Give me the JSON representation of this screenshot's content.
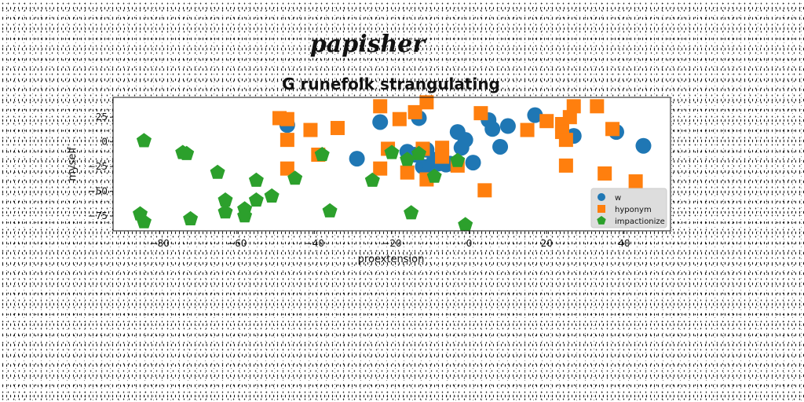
{
  "suptitle": "papisher",
  "chart_data": {
    "type": "scatter",
    "title": "G runefolk strangulating",
    "xlabel": "proextension",
    "ylabel": "myself",
    "xlim": [
      -92,
      52
    ],
    "ylim": [
      -90,
      45
    ],
    "xticks": [
      -80,
      -60,
      -40,
      -20,
      0,
      20,
      40
    ],
    "yticks": [
      25,
      0,
      -25,
      -50,
      -75
    ],
    "grid": false,
    "legend_position": "lower-right",
    "series": [
      {
        "name": "w",
        "marker": "circle",
        "color": "#1f77b4",
        "points": [
          [
            -47,
            17
          ],
          [
            -29,
            -17
          ],
          [
            -23,
            20
          ],
          [
            -13,
            24
          ],
          [
            -12,
            -25
          ],
          [
            -10,
            -24
          ],
          [
            -8,
            -22
          ],
          [
            -6,
            -23
          ],
          [
            -14,
            -13
          ],
          [
            -16,
            -10
          ],
          [
            -5,
            -22
          ],
          [
            -3,
            10
          ],
          [
            -2,
            -6
          ],
          [
            -1,
            2
          ],
          [
            1,
            -21
          ],
          [
            5,
            22
          ],
          [
            6,
            13
          ],
          [
            8,
            -5
          ],
          [
            10,
            16
          ],
          [
            17,
            27
          ],
          [
            27,
            6
          ],
          [
            38,
            10
          ],
          [
            45,
            -4
          ],
          [
            -11,
            -8
          ],
          [
            -9,
            -18
          ]
        ]
      },
      {
        "name": "hyponym",
        "marker": "square",
        "color": "#ff7f0e",
        "points": [
          [
            -49,
            24
          ],
          [
            -47,
            23
          ],
          [
            -47,
            2
          ],
          [
            -47,
            -27
          ],
          [
            -41,
            12
          ],
          [
            -39,
            -13
          ],
          [
            -34,
            14
          ],
          [
            -23,
            36
          ],
          [
            -23,
            -27
          ],
          [
            -21,
            -7
          ],
          [
            -18,
            23
          ],
          [
            -16,
            -31
          ],
          [
            -14,
            30
          ],
          [
            -11,
            40
          ],
          [
            -12,
            -7
          ],
          [
            -11,
            -38
          ],
          [
            -7,
            -6
          ],
          [
            -7,
            -15
          ],
          [
            -3,
            -24
          ],
          [
            3,
            29
          ],
          [
            4,
            -49
          ],
          [
            15,
            12
          ],
          [
            20,
            21
          ],
          [
            24,
            18
          ],
          [
            24,
            10
          ],
          [
            25,
            2
          ],
          [
            26,
            25
          ],
          [
            27,
            36
          ],
          [
            25,
            -24
          ],
          [
            33,
            36
          ],
          [
            35,
            -32
          ],
          [
            37,
            13
          ],
          [
            43,
            -40
          ]
        ]
      },
      {
        "name": "impactionize",
        "marker": "pentagon",
        "color": "#2ca02c",
        "points": [
          [
            -84,
            1
          ],
          [
            -74,
            -11
          ],
          [
            -73,
            -12
          ],
          [
            -85,
            -73
          ],
          [
            -84,
            -81
          ],
          [
            -72,
            -78
          ],
          [
            -65,
            -31
          ],
          [
            -63,
            -59
          ],
          [
            -63,
            -71
          ],
          [
            -58,
            -68
          ],
          [
            -58,
            -75
          ],
          [
            -55,
            -39
          ],
          [
            -55,
            -59
          ],
          [
            -51,
            -55
          ],
          [
            -45,
            -37
          ],
          [
            -38,
            -13
          ],
          [
            -36,
            -70
          ],
          [
            -25,
            -39
          ],
          [
            -20,
            -11
          ],
          [
            -16,
            -18
          ],
          [
            -15,
            -72
          ],
          [
            -13,
            -12
          ],
          [
            -9,
            -35
          ],
          [
            -3,
            -19
          ],
          [
            -1,
            -84
          ]
        ]
      }
    ]
  }
}
